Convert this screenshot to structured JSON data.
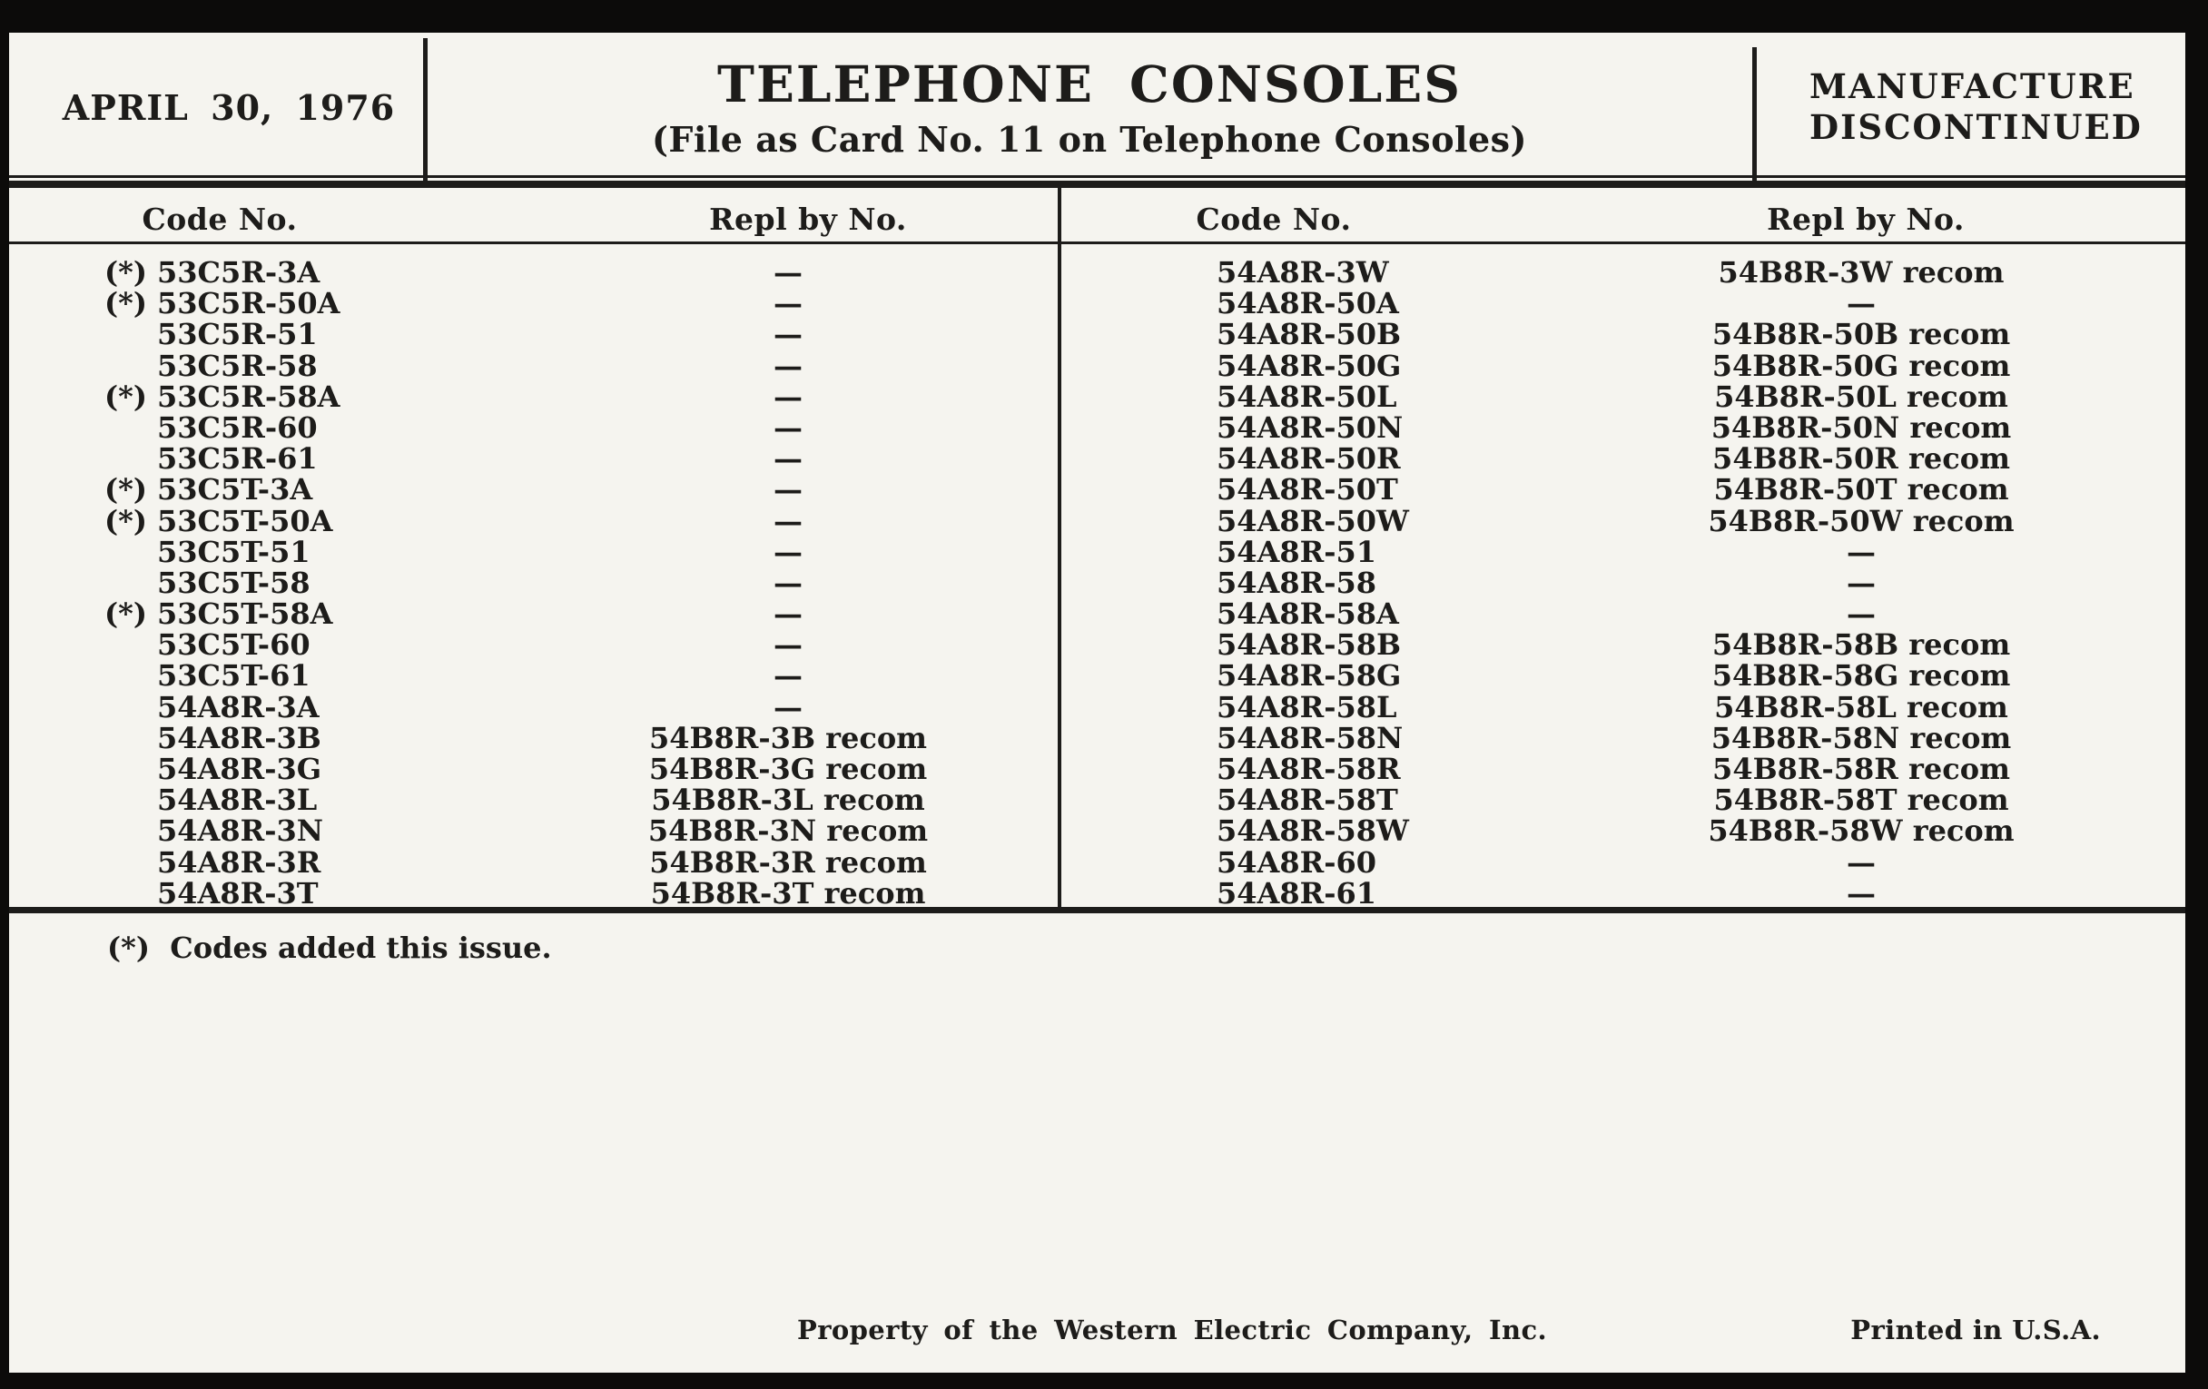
{
  "colors": {
    "paper": "#f5f4ef",
    "ink": "#1d1c1a",
    "frame": "#0c0b0a"
  },
  "header": {
    "date": "APRIL 30, 1976",
    "title": "TELEPHONE CONSOLES",
    "subtitle": "(File as Card No. 11 on Telephone Consoles)",
    "status": [
      "MANUFACTURE",
      "DISCONTINUED"
    ]
  },
  "table": {
    "headers": {
      "code": "Code No.",
      "repl": "Repl by No."
    },
    "left_rows": [
      {
        "prefix": "(*)",
        "code": "53C5R-3A",
        "repl": "—"
      },
      {
        "prefix": "(*)",
        "code": "53C5R-50A",
        "repl": "—"
      },
      {
        "prefix": "",
        "code": "53C5R-51",
        "repl": "—"
      },
      {
        "prefix": "",
        "code": "53C5R-58",
        "repl": "—"
      },
      {
        "prefix": "(*)",
        "code": "53C5R-58A",
        "repl": "—"
      },
      {
        "prefix": "",
        "code": "53C5R-60",
        "repl": "—"
      },
      {
        "prefix": "",
        "code": "53C5R-61",
        "repl": "—"
      },
      {
        "prefix": "(*)",
        "code": "53C5T-3A",
        "repl": "—"
      },
      {
        "prefix": "(*)",
        "code": "53C5T-50A",
        "repl": "—"
      },
      {
        "prefix": "",
        "code": "53C5T-51",
        "repl": "—"
      },
      {
        "prefix": "",
        "code": "53C5T-58",
        "repl": "—"
      },
      {
        "prefix": "(*)",
        "code": "53C5T-58A",
        "repl": "—"
      },
      {
        "prefix": "",
        "code": "53C5T-60",
        "repl": "—"
      },
      {
        "prefix": "",
        "code": "53C5T-61",
        "repl": "—"
      },
      {
        "prefix": "",
        "code": "54A8R-3A",
        "repl": "—"
      },
      {
        "prefix": "",
        "code": "54A8R-3B",
        "repl": "54B8R-3B recom"
      },
      {
        "prefix": "",
        "code": "54A8R-3G",
        "repl": "54B8R-3G recom"
      },
      {
        "prefix": "",
        "code": "54A8R-3L",
        "repl": "54B8R-3L recom"
      },
      {
        "prefix": "",
        "code": "54A8R-3N",
        "repl": "54B8R-3N recom"
      },
      {
        "prefix": "",
        "code": "54A8R-3R",
        "repl": "54B8R-3R recom"
      },
      {
        "prefix": "",
        "code": "54A8R-3T",
        "repl": "54B8R-3T recom"
      }
    ],
    "right_rows": [
      {
        "prefix": "",
        "code": "54A8R-3W",
        "repl": "54B8R-3W recom"
      },
      {
        "prefix": "",
        "code": "54A8R-50A",
        "repl": "—"
      },
      {
        "prefix": "",
        "code": "54A8R-50B",
        "repl": "54B8R-50B recom"
      },
      {
        "prefix": "",
        "code": "54A8R-50G",
        "repl": "54B8R-50G recom"
      },
      {
        "prefix": "",
        "code": "54A8R-50L",
        "repl": "54B8R-50L recom"
      },
      {
        "prefix": "",
        "code": "54A8R-50N",
        "repl": "54B8R-50N recom"
      },
      {
        "prefix": "",
        "code": "54A8R-50R",
        "repl": "54B8R-50R recom"
      },
      {
        "prefix": "",
        "code": "54A8R-50T",
        "repl": "54B8R-50T recom"
      },
      {
        "prefix": "",
        "code": "54A8R-50W",
        "repl": "54B8R-50W recom"
      },
      {
        "prefix": "",
        "code": "54A8R-51",
        "repl": "—"
      },
      {
        "prefix": "",
        "code": "54A8R-58",
        "repl": "—"
      },
      {
        "prefix": "",
        "code": "54A8R-58A",
        "repl": "—"
      },
      {
        "prefix": "",
        "code": "54A8R-58B",
        "repl": "54B8R-58B recom"
      },
      {
        "prefix": "",
        "code": "54A8R-58G",
        "repl": "54B8R-58G recom"
      },
      {
        "prefix": "",
        "code": "54A8R-58L",
        "repl": "54B8R-58L recom"
      },
      {
        "prefix": "",
        "code": "54A8R-58N",
        "repl": "54B8R-58N recom"
      },
      {
        "prefix": "",
        "code": "54A8R-58R",
        "repl": "54B8R-58R recom"
      },
      {
        "prefix": "",
        "code": "54A8R-58T",
        "repl": "54B8R-58T recom"
      },
      {
        "prefix": "",
        "code": "54A8R-58W",
        "repl": "54B8R-58W recom"
      },
      {
        "prefix": "",
        "code": "54A8R-60",
        "repl": "—"
      },
      {
        "prefix": "",
        "code": "54A8R-61",
        "repl": "—"
      }
    ]
  },
  "footnote": "(*)  Codes added this issue.",
  "footer": {
    "property": "Property of the Western Electric Company, Inc.",
    "printed": "Printed in U.S.A."
  }
}
